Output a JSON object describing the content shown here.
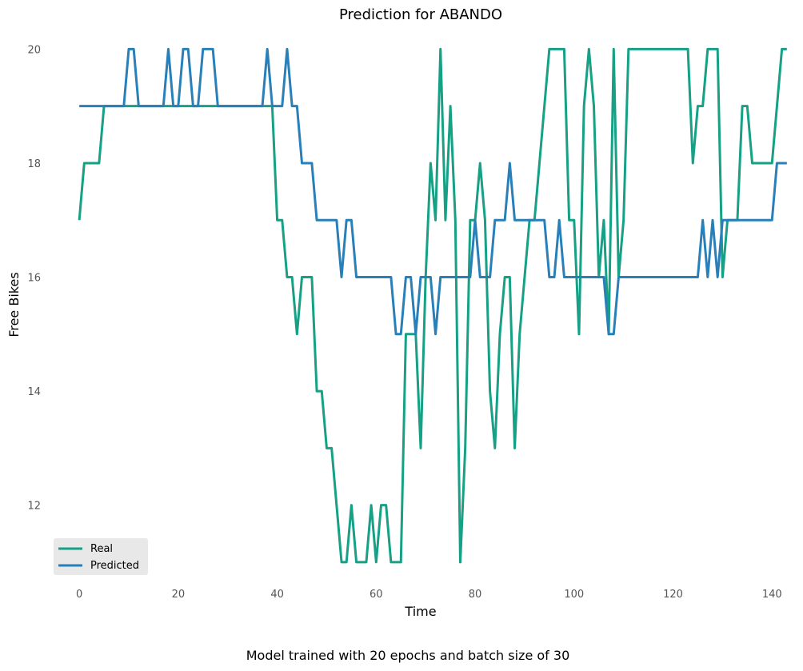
{
  "chart_data": {
    "type": "line",
    "title": "Prediction for ABANDO",
    "xlabel": "Time",
    "ylabel": "Free Bikes",
    "caption": "Model trained with 20 epochs and batch size of 30",
    "xlim": [
      -6,
      144
    ],
    "ylim": [
      10.55,
      20.3
    ],
    "xticks": [
      0,
      20,
      40,
      60,
      80,
      100,
      120,
      140
    ],
    "yticks": [
      12,
      14,
      16,
      18,
      20
    ],
    "grid": false,
    "legend_position": "lower-left",
    "x": [
      0,
      1,
      2,
      3,
      4,
      5,
      6,
      7,
      8,
      9,
      10,
      11,
      12,
      13,
      14,
      15,
      16,
      17,
      18,
      19,
      20,
      21,
      22,
      23,
      24,
      25,
      26,
      27,
      28,
      29,
      30,
      31,
      32,
      33,
      34,
      35,
      36,
      37,
      38,
      39,
      40,
      41,
      42,
      43,
      44,
      45,
      46,
      47,
      48,
      49,
      50,
      51,
      52,
      53,
      54,
      55,
      56,
      57,
      58,
      59,
      60,
      61,
      62,
      63,
      64,
      65,
      66,
      67,
      68,
      69,
      70,
      71,
      72,
      73,
      74,
      75,
      76,
      77,
      78,
      79,
      80,
      81,
      82,
      83,
      84,
      85,
      86,
      87,
      88,
      89,
      90,
      91,
      92,
      93,
      94,
      95,
      96,
      97,
      98,
      99,
      100,
      101,
      102,
      103,
      104,
      105,
      106,
      107,
      108,
      109,
      110,
      111,
      112,
      113,
      114,
      115,
      116,
      117,
      118,
      119,
      120,
      121,
      122,
      123,
      124,
      125,
      126,
      127,
      128,
      129,
      130,
      131,
      132,
      133,
      134,
      135,
      136,
      137,
      138,
      139,
      140,
      141,
      142,
      143
    ],
    "series": [
      {
        "name": "Real",
        "color": "#16a085",
        "values": [
          17,
          18,
          18,
          18,
          18,
          19,
          19,
          19,
          19,
          19,
          19,
          19,
          19,
          19,
          19,
          19,
          19,
          19,
          19,
          19,
          19,
          19,
          19,
          19,
          19,
          19,
          19,
          19,
          19,
          19,
          19,
          19,
          19,
          19,
          19,
          19,
          19,
          19,
          19,
          19,
          17,
          17,
          16,
          16,
          15,
          16,
          16,
          16,
          14,
          14,
          13,
          13,
          12,
          11,
          11,
          12,
          11,
          11,
          11,
          12,
          11,
          12,
          12,
          11,
          11,
          11,
          15,
          15,
          15,
          13,
          16,
          18,
          17,
          20,
          17,
          19,
          17,
          11,
          13,
          17,
          17,
          18,
          17,
          14,
          13,
          15,
          16,
          16,
          13,
          15,
          16,
          17,
          17,
          18,
          19,
          20,
          20,
          20,
          20,
          17,
          17,
          15,
          19,
          20,
          19,
          16,
          17,
          15,
          20,
          16,
          17,
          20,
          20,
          20,
          20,
          20,
          20,
          20,
          20,
          20,
          20,
          20,
          20,
          20,
          18,
          19,
          19,
          20,
          20,
          20,
          16,
          17,
          17,
          17,
          19,
          19,
          18,
          18,
          18,
          18,
          18,
          19,
          20,
          20
        ]
      },
      {
        "name": "Predicted",
        "color": "#2980b9",
        "values": [
          19,
          19,
          19,
          19,
          19,
          19,
          19,
          19,
          19,
          19,
          20,
          20,
          19,
          19,
          19,
          19,
          19,
          19,
          20,
          19,
          19,
          20,
          20,
          19,
          19,
          20,
          20,
          20,
          19,
          19,
          19,
          19,
          19,
          19,
          19,
          19,
          19,
          19,
          20,
          19,
          19,
          19,
          20,
          19,
          19,
          18,
          18,
          18,
          17,
          17,
          17,
          17,
          17,
          16,
          17,
          17,
          16,
          16,
          16,
          16,
          16,
          16,
          16,
          16,
          15,
          15,
          16,
          16,
          15,
          16,
          16,
          16,
          15,
          16,
          16,
          16,
          16,
          16,
          16,
          16,
          17,
          16,
          16,
          16,
          17,
          17,
          17,
          18,
          17,
          17,
          17,
          17,
          17,
          17,
          17,
          16,
          16,
          17,
          16,
          16,
          16,
          16,
          16,
          16,
          16,
          16,
          16,
          15,
          15,
          16,
          16,
          16,
          16,
          16,
          16,
          16,
          16,
          16,
          16,
          16,
          16,
          16,
          16,
          16,
          16,
          16,
          17,
          16,
          17,
          16,
          17,
          17,
          17,
          17,
          17,
          17,
          17,
          17,
          17,
          17,
          17,
          18,
          18,
          18
        ]
      }
    ]
  }
}
